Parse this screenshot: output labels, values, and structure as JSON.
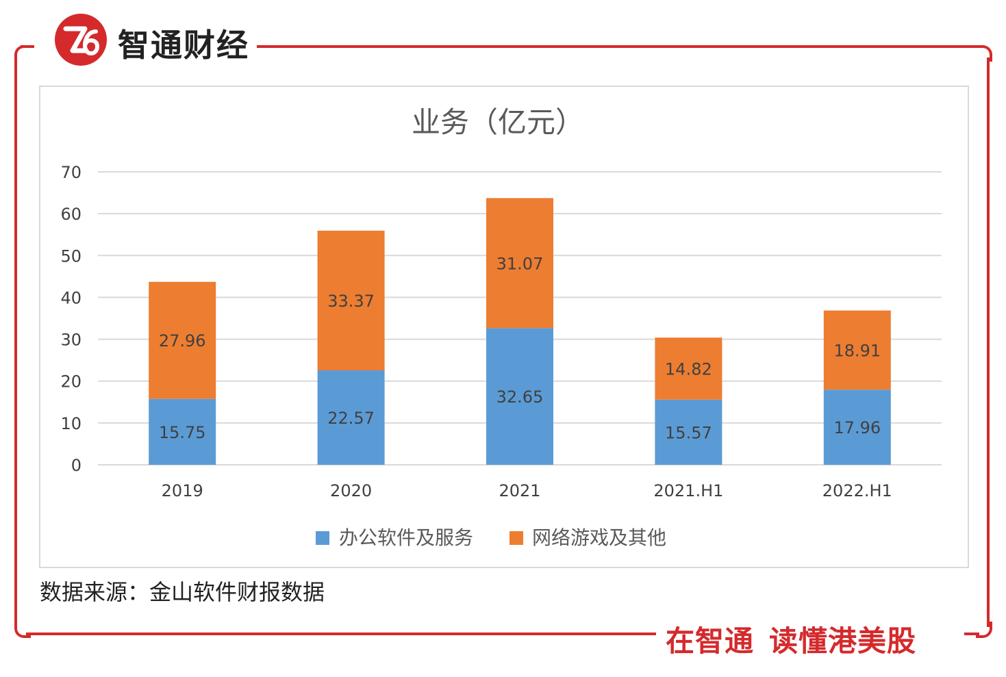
{
  "brand": {
    "name": "智通财经",
    "logo_text": "Z6",
    "color": "#d42a2c"
  },
  "slogan": {
    "part1": "在智通",
    "part2": "读懂港美股"
  },
  "source_note": "数据来源：金山软件财报数据",
  "colors": {
    "series1": "#5b9bd5",
    "series2": "#ed7d31",
    "grid": "#d9d9d9",
    "text": "#404040"
  },
  "chart_data": {
    "type": "bar",
    "stacked": true,
    "title": "业务（亿元）",
    "categories": [
      "2019",
      "2020",
      "2021",
      "2021.H1",
      "2022.H1"
    ],
    "series": [
      {
        "name": "办公软件及服务",
        "values": [
          15.75,
          22.57,
          32.65,
          15.57,
          17.96
        ]
      },
      {
        "name": "网络游戏及其他",
        "values": [
          27.96,
          33.37,
          31.07,
          14.82,
          18.91
        ]
      }
    ],
    "yticks": [
      "0",
      "10",
      "20",
      "30",
      "40",
      "50",
      "60",
      "70"
    ],
    "ylim": [
      0,
      70
    ],
    "xlabel": "",
    "ylabel": "",
    "grid": true,
    "legend": "bottom"
  }
}
